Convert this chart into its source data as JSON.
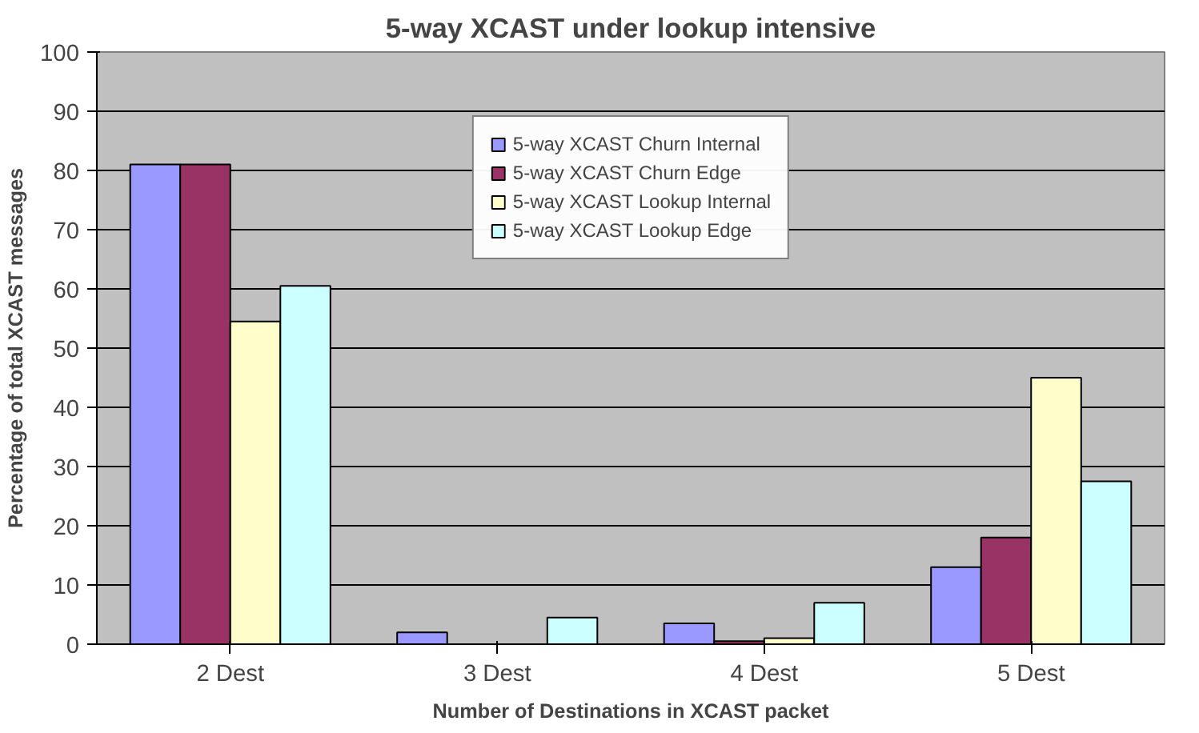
{
  "chart_data": {
    "type": "bar",
    "title": "5-way XCAST under lookup intensive",
    "xlabel": "Number of Destinations in XCAST packet",
    "ylabel": "Percentage of total XCAST messages",
    "categories": [
      "2 Dest",
      "3 Dest",
      "4 Dest",
      "5 Dest"
    ],
    "series": [
      {
        "name": "5-way XCAST Churn Internal",
        "color": "#9999ff",
        "values": [
          81,
          2,
          3.5,
          13
        ]
      },
      {
        "name": "5-way XCAST Churn Edge",
        "color": "#993366",
        "values": [
          81,
          0,
          0.5,
          18
        ]
      },
      {
        "name": "5-way XCAST Lookup Internal",
        "color": "#ffffcc",
        "values": [
          54.5,
          0,
          1,
          45
        ]
      },
      {
        "name": "5-way XCAST Lookup Edge",
        "color": "#ccffff",
        "values": [
          60.5,
          4.5,
          7,
          27.5
        ]
      }
    ],
    "ylim": [
      0,
      100
    ],
    "yticks": [
      0,
      10,
      20,
      30,
      40,
      50,
      60,
      70,
      80,
      90,
      100
    ],
    "grid": "y",
    "legend": "top"
  }
}
